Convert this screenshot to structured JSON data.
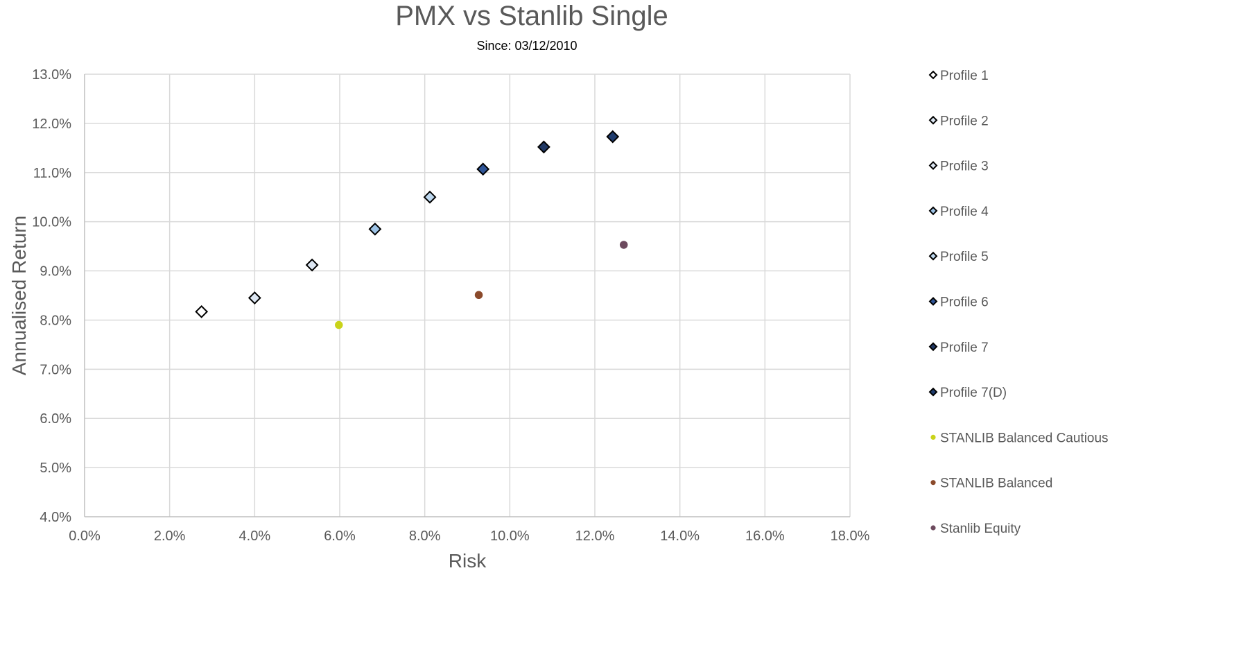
{
  "chart_data": {
    "type": "scatter",
    "title": "PMX vs Stanlib Single",
    "subtitle": "Since: 03/12/2010",
    "xlabel": "Risk",
    "ylabel": "Annualised Return",
    "xlim": [
      0,
      18
    ],
    "ylim": [
      4,
      13
    ],
    "x_ticks": [
      "0.0%",
      "2.0%",
      "4.0%",
      "6.0%",
      "8.0%",
      "10.0%",
      "12.0%",
      "14.0%",
      "16.0%",
      "18.0%"
    ],
    "y_ticks": [
      "4.0%",
      "5.0%",
      "6.0%",
      "7.0%",
      "8.0%",
      "9.0%",
      "10.0%",
      "11.0%",
      "12.0%",
      "13.0%"
    ],
    "grid": true,
    "legend_position": "right",
    "series": [
      {
        "name": "Profile 1",
        "marker": "diamond",
        "color": "#ffffff",
        "points": [
          {
            "x": 2.75,
            "y": 8.17
          }
        ]
      },
      {
        "name": "Profile 2",
        "marker": "diamond",
        "color": "#dce6f2",
        "points": [
          {
            "x": 4.0,
            "y": 8.45
          }
        ]
      },
      {
        "name": "Profile 3",
        "marker": "diamond",
        "color": "#dce6f2",
        "points": [
          {
            "x": 5.35,
            "y": 9.12
          }
        ]
      },
      {
        "name": "Profile 4",
        "marker": "diamond",
        "color": "#9dc3e6",
        "points": [
          {
            "x": 6.83,
            "y": 9.85
          }
        ]
      },
      {
        "name": "Profile 5",
        "marker": "diamond",
        "color": "#bdd7ee",
        "points": [
          {
            "x": 8.12,
            "y": 10.5
          }
        ]
      },
      {
        "name": "Profile 6",
        "marker": "diamond",
        "color": "#2f5597",
        "points": [
          {
            "x": 9.37,
            "y": 11.07
          }
        ]
      },
      {
        "name": "Profile 7",
        "marker": "diamond",
        "color": "#203864",
        "points": [
          {
            "x": 10.8,
            "y": 11.52
          }
        ]
      },
      {
        "name": "Profile 7(D)",
        "marker": "diamond",
        "color": "#1f3c6e",
        "points": [
          {
            "x": 12.42,
            "y": 11.73
          }
        ]
      },
      {
        "name": "STANLIB Balanced Cautious",
        "marker": "circle",
        "color": "#c9d31a",
        "points": [
          {
            "x": 5.98,
            "y": 7.9
          }
        ]
      },
      {
        "name": "STANLIB Balanced",
        "marker": "circle",
        "color": "#8b4a2b",
        "points": [
          {
            "x": 9.27,
            "y": 8.51
          }
        ]
      },
      {
        "name": "Stanlib Equity",
        "marker": "circle",
        "color": "#6d4a5e",
        "points": [
          {
            "x": 12.68,
            "y": 9.53
          }
        ]
      }
    ]
  }
}
